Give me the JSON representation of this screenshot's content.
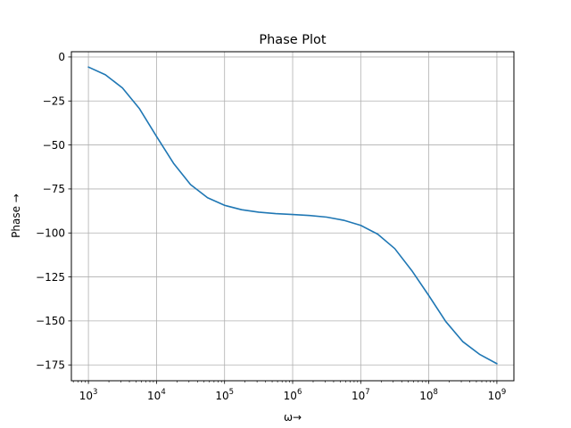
{
  "chart_data": {
    "type": "line",
    "title": "Phase Plot",
    "xlabel": "ω→",
    "ylabel": "Phase →",
    "xscale": "log",
    "xlim": [
      562,
      1778000000
    ],
    "ylim": [
      -184,
      3
    ],
    "grid": true,
    "x_ticks": [
      1000,
      10000,
      100000,
      1000000,
      10000000,
      100000000,
      1000000000
    ],
    "x_tick_labels": [
      {
        "base": "10",
        "exp": "3"
      },
      {
        "base": "10",
        "exp": "4"
      },
      {
        "base": "10",
        "exp": "5"
      },
      {
        "base": "10",
        "exp": "6"
      },
      {
        "base": "10",
        "exp": "7"
      },
      {
        "base": "10",
        "exp": "8"
      },
      {
        "base": "10",
        "exp": "9"
      }
    ],
    "y_ticks": [
      0,
      -25,
      -50,
      -75,
      -100,
      -125,
      -150,
      -175
    ],
    "y_tick_labels": [
      "0",
      "−25",
      "−50",
      "−75",
      "−100",
      "−125",
      "−150",
      "−175"
    ],
    "series": [
      {
        "color": "#1f77b4",
        "x": [
          1000,
          1778,
          3162,
          5623,
          10000,
          17783,
          31623,
          56234,
          100000,
          177828,
          316228,
          562341,
          1000000,
          1778279,
          3162278,
          5623413,
          10000000,
          17782794,
          31622777,
          56234133,
          100000000,
          177827941,
          316227766,
          562341325,
          1000000000
        ],
        "y": [
          -5.7,
          -10.1,
          -17.6,
          -29.4,
          -45.1,
          -60.4,
          -72.5,
          -80.0,
          -84.3,
          -86.8,
          -88.2,
          -89.0,
          -89.5,
          -90.1,
          -91.0,
          -92.8,
          -95.7,
          -100.7,
          -108.9,
          -121.4,
          -135.6,
          -150.4,
          -161.8,
          -169.1,
          -174.3
        ]
      }
    ]
  }
}
